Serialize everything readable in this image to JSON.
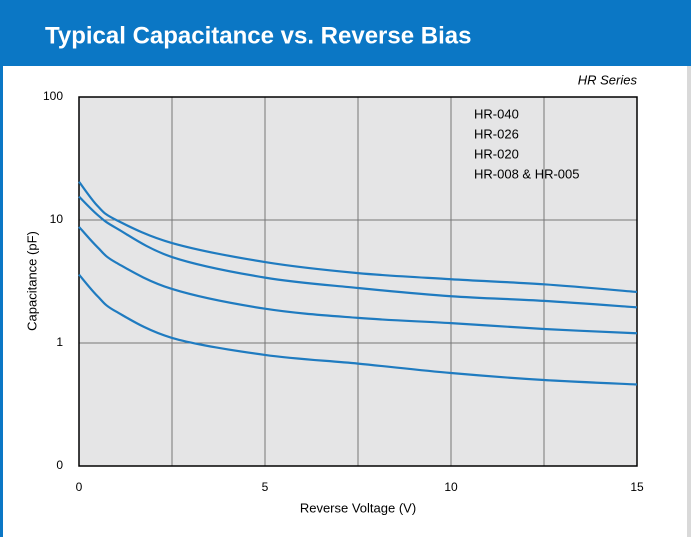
{
  "chart_data": {
    "type": "line",
    "title": "Typical Capacitance vs. Reverse Bias",
    "annotation": "HR Series",
    "xlabel": "Reverse Voltage (V)",
    "ylabel": "Capacitance (pF)",
    "x": [
      0,
      0.5,
      1,
      2.5,
      5,
      7.5,
      10,
      12.5,
      15
    ],
    "series": [
      {
        "name": "HR-040",
        "color": "#1f7bc0",
        "values": [
          20.5,
          13,
          10,
          6.5,
          4.55,
          3.7,
          3.3,
          3.0,
          2.6
        ]
      },
      {
        "name": "HR-026",
        "color": "#1f7bc0",
        "values": [
          15.5,
          11,
          8.6,
          5.0,
          3.4,
          2.8,
          2.4,
          2.2,
          1.95
        ]
      },
      {
        "name": "HR-020",
        "color": "#1f7bc0",
        "values": [
          8.8,
          6,
          4.5,
          2.75,
          1.9,
          1.6,
          1.45,
          1.3,
          1.2
        ]
      },
      {
        "name": "HR-008 & HR-005",
        "color": "#1f7bc0",
        "values": [
          3.6,
          2.4,
          1.8,
          1.1,
          0.8,
          0.68,
          0.57,
          0.5,
          0.46
        ]
      }
    ],
    "xlim": [
      0,
      15
    ],
    "xticks": [
      0,
      5,
      10,
      15
    ],
    "xminor": [
      2.5,
      7.5,
      12.5
    ],
    "ylim": [
      0.1,
      100
    ],
    "yticks": [
      {
        "value": 0.1,
        "label": "0"
      },
      1,
      10,
      100
    ],
    "log_y": true,
    "grid": true
  }
}
